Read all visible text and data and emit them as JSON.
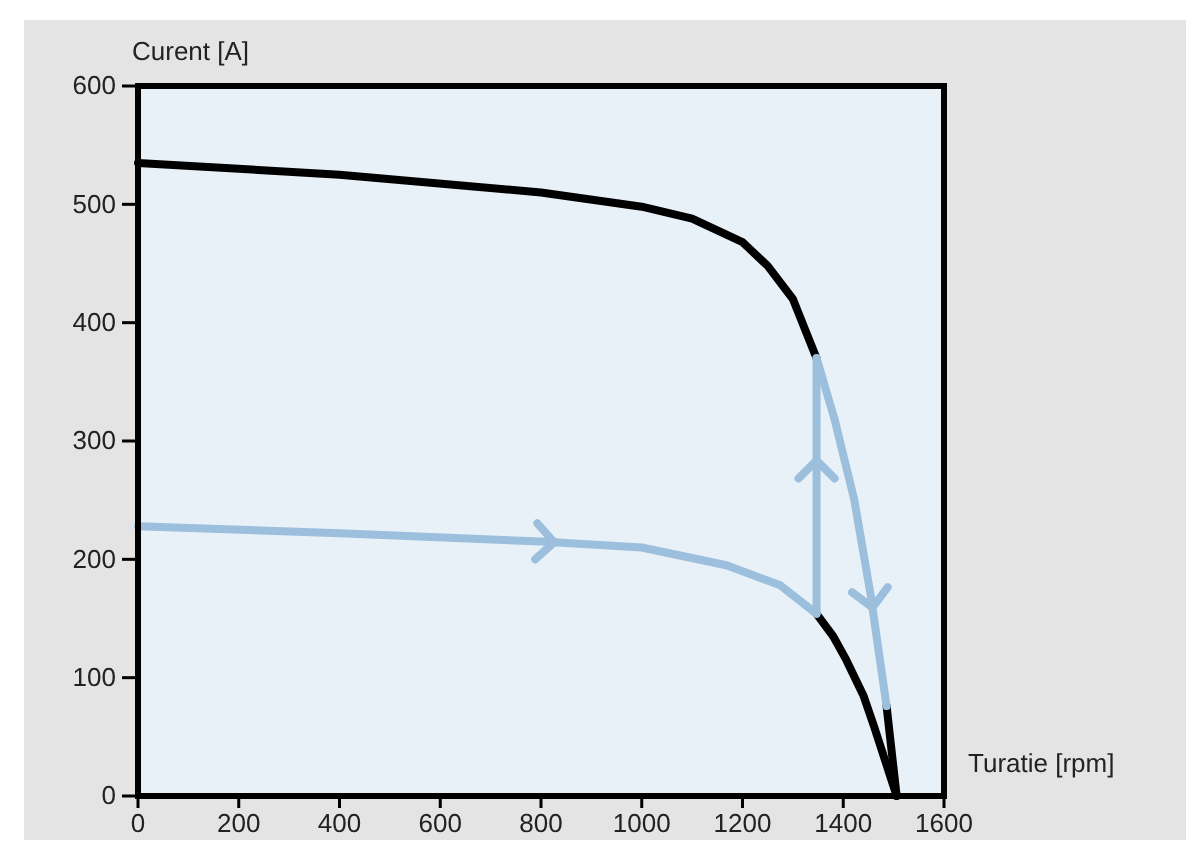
{
  "chart_data": {
    "type": "line",
    "xlabel": "Turatie [rpm]",
    "ylabel": "Curent [A]",
    "xlim": [
      0,
      1600
    ],
    "xticks": [
      0,
      200,
      400,
      600,
      800,
      1000,
      1200,
      1400,
      1600
    ],
    "ylim": [
      0,
      600
    ],
    "yticks": [
      0,
      100,
      200,
      300,
      400,
      500,
      600
    ],
    "grid": false,
    "marker": "none",
    "line_style": "solid",
    "series": [
      {
        "color": "#000000",
        "x": [
          0,
          400,
          800,
          1000,
          1100,
          1200,
          1250,
          1300,
          1347,
          1383,
          1422,
          1454,
          1486,
          1506
        ],
        "values": [
          535,
          525,
          510,
          498,
          488,
          468,
          448,
          420,
          370,
          null,
          null,
          null,
          76,
          0
        ]
      },
      {
        "color": "#000000",
        "x": [
          1347,
          1380,
          1406,
          1440,
          1461,
          1506
        ],
        "values": [
          154,
          135,
          115,
          85,
          59,
          0
        ]
      },
      {
        "color": "#9bbfdc",
        "x": [
          0,
          400,
          800,
          1000,
          1168,
          1275,
          1347
        ],
        "values": [
          228,
          222,
          215,
          210,
          195,
          178,
          154
        ]
      },
      {
        "color": "#9bbfdc",
        "x": [
          1347,
          1347
        ],
        "values": [
          154,
          370
        ]
      },
      {
        "color": "#9bbfdc",
        "x": [
          1347,
          1383,
          1422,
          1454,
          1486
        ],
        "values": [
          370,
          318,
          250,
          171,
          76
        ]
      }
    ]
  }
}
